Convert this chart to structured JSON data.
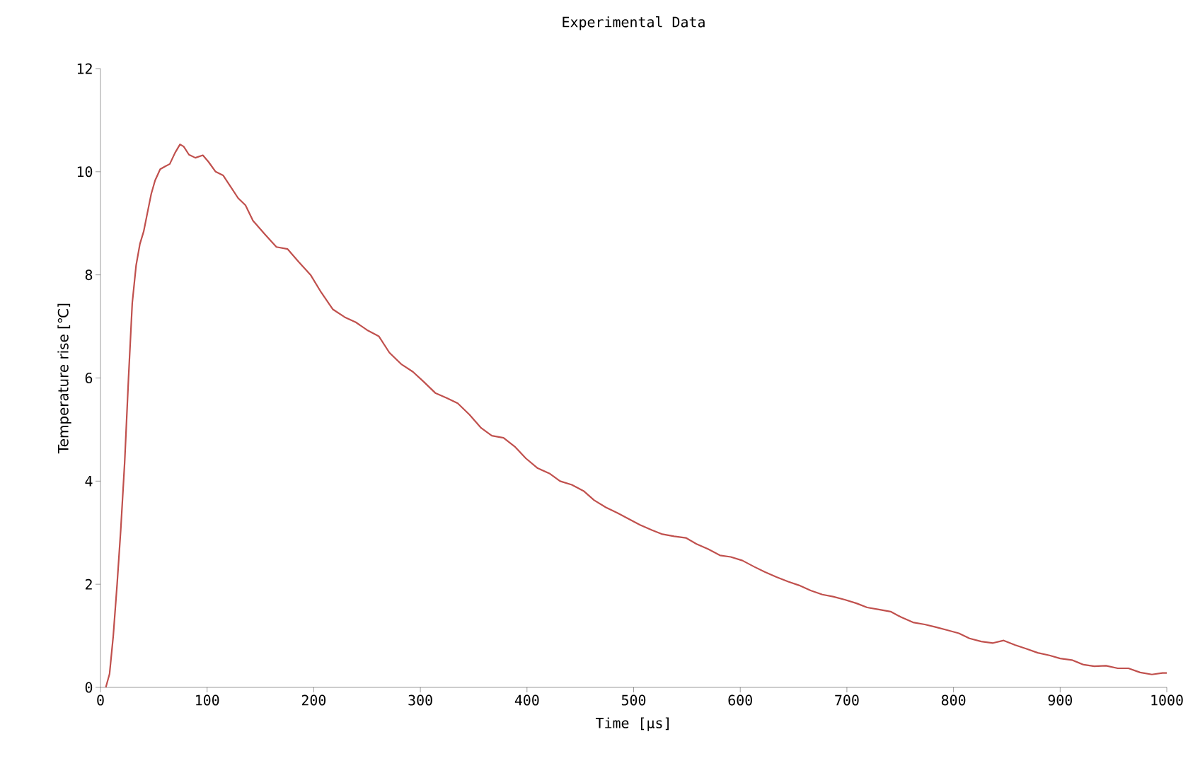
{
  "chart_data": {
    "type": "line",
    "title": "Experimental Data",
    "xlabel": "Time [μs]",
    "ylabel": "Temperature rise [℃]",
    "xlim": [
      0,
      1000
    ],
    "ylim": [
      0,
      12
    ],
    "xticks": [
      0,
      100,
      200,
      300,
      400,
      500,
      600,
      700,
      800,
      900,
      1000
    ],
    "yticks": [
      0,
      2,
      4,
      6,
      8,
      10,
      12
    ],
    "marker": "none",
    "line_style": "solid",
    "series": [
      {
        "color": "#c0504d",
        "x": [
          5,
          8.5,
          12,
          15.6,
          19,
          22.7,
          26.3,
          29.8,
          33.4,
          37,
          40.5,
          44,
          47.6,
          51.2,
          56,
          60.4,
          65,
          70,
          74.6,
          78,
          83,
          89,
          96,
          101,
          108,
          115,
          122,
          129,
          136,
          143,
          154,
          165,
          175.5,
          186,
          197,
          207,
          218,
          229,
          239.5,
          250,
          261,
          271,
          282,
          293,
          303,
          314,
          325,
          335,
          346,
          357,
          367,
          378,
          389,
          399,
          410,
          421,
          431,
          442,
          453,
          463,
          474,
          485,
          495,
          506,
          517,
          527,
          538,
          549,
          559,
          570,
          581,
          591,
          602,
          613,
          623,
          634,
          645,
          655,
          666,
          677,
          687,
          698,
          709,
          719,
          730,
          741,
          751,
          762,
          773,
          783,
          794,
          805,
          815,
          826,
          837,
          847,
          858,
          868,
          879,
          890,
          900,
          911,
          922,
          932,
          943,
          954,
          964,
          975,
          986,
          996,
          1000
        ],
        "values": [
          0,
          0.26,
          1.0,
          2.0,
          3.05,
          4.37,
          6.0,
          7.45,
          8.18,
          8.6,
          8.84,
          9.2,
          9.57,
          9.83,
          10.05,
          10.1,
          10.15,
          10.37,
          10.53,
          10.49,
          10.33,
          10.27,
          10.32,
          10.2,
          10.0,
          9.93,
          9.71,
          9.49,
          9.35,
          9.05,
          8.79,
          8.54,
          8.5,
          8.25,
          8.0,
          7.66,
          7.33,
          7.18,
          7.08,
          6.93,
          6.81,
          6.49,
          6.27,
          6.12,
          5.93,
          5.71,
          5.61,
          5.51,
          5.29,
          5.03,
          4.88,
          4.84,
          4.66,
          4.44,
          4.25,
          4.15,
          4.0,
          3.93,
          3.81,
          3.63,
          3.49,
          3.38,
          3.27,
          3.15,
          3.05,
          2.97,
          2.93,
          2.9,
          2.78,
          2.68,
          2.56,
          2.53,
          2.46,
          2.34,
          2.24,
          2.14,
          2.05,
          1.98,
          1.88,
          1.8,
          1.76,
          1.7,
          1.63,
          1.55,
          1.51,
          1.47,
          1.36,
          1.26,
          1.22,
          1.17,
          1.11,
          1.05,
          0.95,
          0.89,
          0.86,
          0.91,
          0.82,
          0.75,
          0.67,
          0.62,
          0.56,
          0.53,
          0.44,
          0.41,
          0.42,
          0.37,
          0.37,
          0.29,
          0.25,
          0.28,
          0.28
        ]
      }
    ]
  }
}
